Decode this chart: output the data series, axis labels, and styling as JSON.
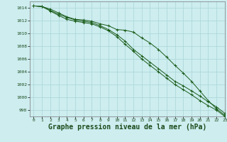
{
  "background_color": "#cdedef",
  "grid_color": "#a8d5d8",
  "line_color": "#1a5c1a",
  "xlabel": "Graphe pression niveau de la mer (hPa)",
  "xlabel_fontsize": 7,
  "xlim": [
    -0.5,
    23
  ],
  "ylim": [
    997,
    1015
  ],
  "yticks": [
    998,
    1000,
    1002,
    1004,
    1006,
    1008,
    1010,
    1012,
    1014
  ],
  "xticks": [
    0,
    1,
    2,
    3,
    4,
    5,
    6,
    7,
    8,
    9,
    10,
    11,
    12,
    13,
    14,
    15,
    16,
    17,
    18,
    19,
    20,
    21,
    22,
    23
  ],
  "hours": [
    0,
    1,
    2,
    3,
    4,
    5,
    6,
    7,
    8,
    9,
    10,
    11,
    12,
    13,
    14,
    15,
    16,
    17,
    18,
    19,
    20,
    21,
    22,
    23
  ],
  "line1": [
    1014.3,
    1014.2,
    1013.8,
    1013.2,
    1012.6,
    1012.2,
    1012.1,
    1011.9,
    1011.5,
    1011.2,
    1010.6,
    1010.5,
    1010.2,
    1009.3,
    1008.5,
    1007.5,
    1006.3,
    1005.0,
    1003.8,
    1002.5,
    1001.0,
    999.5,
    998.2,
    997.2
  ],
  "line2": [
    1014.3,
    1014.2,
    1013.6,
    1013.0,
    1012.5,
    1012.1,
    1011.9,
    1011.7,
    1011.2,
    1010.6,
    1009.8,
    1008.8,
    1007.5,
    1006.5,
    1005.5,
    1004.5,
    1003.5,
    1002.5,
    1001.8,
    1001.0,
    1000.2,
    999.3,
    998.5,
    997.5
  ],
  "line3": [
    1014.3,
    1014.2,
    1013.5,
    1012.8,
    1012.2,
    1011.9,
    1011.7,
    1011.5,
    1011.0,
    1010.4,
    1009.5,
    1008.3,
    1007.2,
    1006.0,
    1005.0,
    1004.0,
    1003.0,
    1002.0,
    1001.2,
    1000.4,
    999.5,
    998.7,
    998.0,
    997.0
  ]
}
